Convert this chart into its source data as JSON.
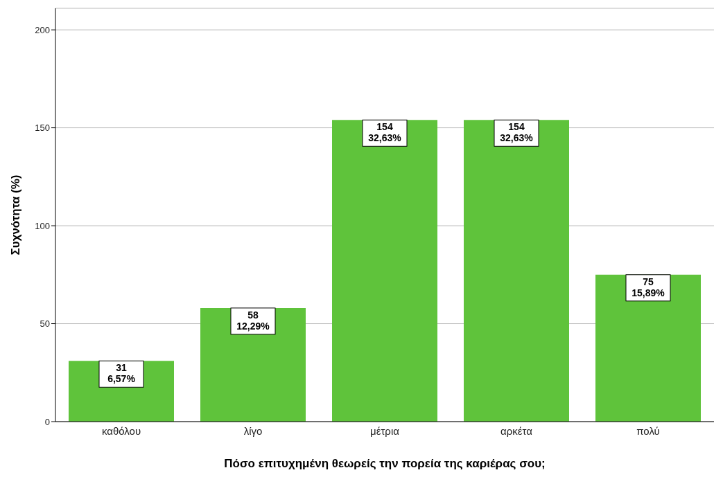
{
  "chart_data": {
    "type": "bar",
    "xlabel": "Πόσο επιτυχημένη θεωρείς την πορεία της καριέρας σου;",
    "ylabel": "Συχνότητα (%)",
    "categories": [
      "καθόλου",
      "λίγο",
      "μέτρια",
      "αρκέτα",
      "πολύ"
    ],
    "values": [
      31,
      58,
      154,
      154,
      75
    ],
    "value_labels": [
      "31\n6,57%",
      "58\n12,29%",
      "154\n32,63%",
      "154\n32,63%",
      "75\n15,89%"
    ],
    "color": "#5fc33b",
    "ylim": [
      0,
      211
    ],
    "yticks": [
      0,
      50,
      100,
      150,
      200
    ],
    "grid": "y"
  }
}
